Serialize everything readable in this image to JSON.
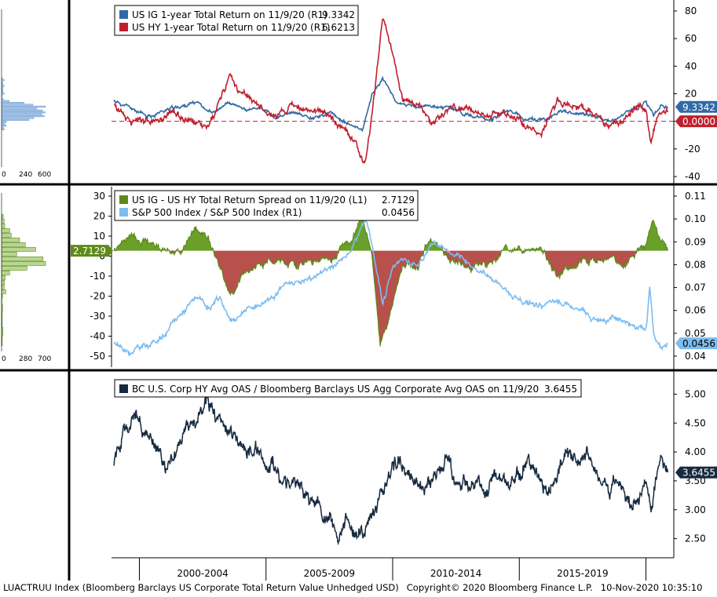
{
  "footer": {
    "index": "LUACTRUU Index (Bloomberg Barclays US Corporate Total Return Value Unhedged USD)",
    "copyright": "Copyright© 2020 Bloomberg Finance L.P.",
    "date": "10-Nov-2020 10:35:10"
  },
  "chart_data": [
    {
      "type": "line",
      "panel": "top",
      "legend_position": "top-left",
      "series": [
        {
          "name": "US IG 1-year Total Return on 11/9/20 (R1)",
          "value_label": "9.3342",
          "last": 9.3342,
          "color": "#2e6aa6",
          "anchors": [
            [
              1999.0,
              15
            ],
            [
              1999.6,
              10
            ],
            [
              2000.3,
              3
            ],
            [
              2001.0,
              8
            ],
            [
              2001.5,
              10
            ],
            [
              2002.3,
              14
            ],
            [
              2002.9,
              6
            ],
            [
              2003.5,
              13
            ],
            [
              2004.2,
              8
            ],
            [
              2004.8,
              10
            ],
            [
              2005.4,
              2
            ],
            [
              2006.0,
              6
            ],
            [
              2006.8,
              3
            ],
            [
              2007.6,
              6
            ],
            [
              2008.3,
              -3
            ],
            [
              2008.8,
              -6
            ],
            [
              2009.2,
              20
            ],
            [
              2009.6,
              31
            ],
            [
              2010.2,
              13
            ],
            [
              2010.9,
              10
            ],
            [
              2011.6,
              11
            ],
            [
              2012.4,
              9
            ],
            [
              2013.2,
              3
            ],
            [
              2013.8,
              1
            ],
            [
              2014.5,
              8
            ],
            [
              2015.2,
              2
            ],
            [
              2016.0,
              1
            ],
            [
              2016.6,
              7
            ],
            [
              2017.3,
              5
            ],
            [
              2018.0,
              4
            ],
            [
              2018.6,
              -1
            ],
            [
              2019.3,
              6
            ],
            [
              2020.0,
              14
            ],
            [
              2020.3,
              3
            ],
            [
              2020.6,
              12
            ],
            [
              2020.86,
              9.3342
            ]
          ]
        },
        {
          "name": "US HY 1-year Total Return on 11/9/20 (R1)",
          "value_label": "6.6213",
          "last": 6.6213,
          "color": "#c0202e",
          "anchors": [
            [
              1999.0,
              12
            ],
            [
              1999.6,
              2
            ],
            [
              2000.3,
              -2
            ],
            [
              2001.0,
              3
            ],
            [
              2001.5,
              6
            ],
            [
              2002.3,
              -3
            ],
            [
              2002.7,
              -5
            ],
            [
              2003.2,
              15
            ],
            [
              2003.6,
              35
            ],
            [
              2004.0,
              20
            ],
            [
              2004.6,
              12
            ],
            [
              2005.2,
              4
            ],
            [
              2006.0,
              10
            ],
            [
              2006.8,
              8
            ],
            [
              2007.5,
              5
            ],
            [
              2008.1,
              -5
            ],
            [
              2008.6,
              -20
            ],
            [
              2008.9,
              -32
            ],
            [
              2009.3,
              20
            ],
            [
              2009.6,
              75
            ],
            [
              2009.9,
              58
            ],
            [
              2010.4,
              15
            ],
            [
              2011.0,
              14
            ],
            [
              2011.5,
              -1
            ],
            [
              2012.4,
              12
            ],
            [
              2013.0,
              7
            ],
            [
              2013.8,
              5
            ],
            [
              2014.6,
              3
            ],
            [
              2015.3,
              -2
            ],
            [
              2015.9,
              -8
            ],
            [
              2016.5,
              16
            ],
            [
              2017.1,
              12
            ],
            [
              2017.8,
              7
            ],
            [
              2018.4,
              -2
            ],
            [
              2019.0,
              -1
            ],
            [
              2019.6,
              10
            ],
            [
              2020.0,
              8
            ],
            [
              2020.2,
              -14
            ],
            [
              2020.5,
              4
            ],
            [
              2020.86,
              6.6213
            ]
          ]
        }
      ],
      "extra_label": "0.0000",
      "ylim": [
        -40,
        80
      ],
      "yticks": [
        -40,
        -20,
        0,
        20,
        40,
        60,
        80
      ],
      "zero_line": true,
      "histogram_ticks": [
        "0",
        "240",
        "600"
      ]
    },
    {
      "type": "area",
      "panel": "middle",
      "legend_position": "top-left",
      "series": [
        {
          "name": "US IG - US HY Total Return Spread on 11/9/20 (L1)",
          "value_label": "2.7129",
          "last": 2.7129,
          "color": "#5e8a1a",
          "anchors": [
            [
              1999.0,
              3
            ],
            [
              1999.6,
              10
            ],
            [
              2000.3,
              7
            ],
            [
              2001.0,
              3
            ],
            [
              2001.6,
              2
            ],
            [
              2002.2,
              13
            ],
            [
              2002.7,
              9
            ],
            [
              2003.2,
              -5
            ],
            [
              2003.6,
              -20
            ],
            [
              2004.0,
              -10
            ],
            [
              2004.6,
              -3
            ],
            [
              2005.2,
              -2
            ],
            [
              2006.0,
              -4
            ],
            [
              2006.8,
              -3
            ],
            [
              2007.6,
              0
            ],
            [
              2008.3,
              7
            ],
            [
              2008.8,
              20
            ],
            [
              2009.2,
              0
            ],
            [
              2009.5,
              -45
            ],
            [
              2009.9,
              -30
            ],
            [
              2010.4,
              -5
            ],
            [
              2011.0,
              -4
            ],
            [
              2011.5,
              10
            ],
            [
              2012.3,
              -2
            ],
            [
              2013.1,
              -5
            ],
            [
              2013.8,
              -3
            ],
            [
              2014.5,
              3
            ],
            [
              2015.2,
              4
            ],
            [
              2015.8,
              6
            ],
            [
              2016.3,
              -6
            ],
            [
              2016.6,
              -10
            ],
            [
              2017.2,
              -4
            ],
            [
              2017.9,
              -1
            ],
            [
              2018.5,
              0
            ],
            [
              2019.1,
              -7
            ],
            [
              2019.6,
              2
            ],
            [
              2020.0,
              5
            ],
            [
              2020.25,
              18
            ],
            [
              2020.5,
              10
            ],
            [
              2020.86,
              2.7129
            ]
          ]
        },
        {
          "name": "S&P 500 Index / S&P 500 Index (R1)",
          "value_label": "0.0456",
          "last": 0.0456,
          "color": "#7cbcf0",
          "anchors": [
            [
              1999.0,
              0.046
            ],
            [
              1999.6,
              0.042
            ],
            [
              2000.3,
              0.045
            ],
            [
              2001.0,
              0.049
            ],
            [
              2001.6,
              0.058
            ],
            [
              2002.3,
              0.066
            ],
            [
              2002.8,
              0.061
            ],
            [
              2003.2,
              0.065
            ],
            [
              2003.6,
              0.055
            ],
            [
              2004.2,
              0.06
            ],
            [
              2004.8,
              0.063
            ],
            [
              2005.4,
              0.068
            ],
            [
              2006.0,
              0.072
            ],
            [
              2006.8,
              0.074
            ],
            [
              2007.4,
              0.078
            ],
            [
              2008.0,
              0.082
            ],
            [
              2008.6,
              0.092
            ],
            [
              2008.9,
              0.101
            ],
            [
              2009.2,
              0.088
            ],
            [
              2009.6,
              0.064
            ],
            [
              2010.0,
              0.078
            ],
            [
              2010.5,
              0.083
            ],
            [
              2011.0,
              0.08
            ],
            [
              2011.6,
              0.09
            ],
            [
              2012.3,
              0.085
            ],
            [
              2013.0,
              0.08
            ],
            [
              2013.8,
              0.075
            ],
            [
              2014.6,
              0.068
            ],
            [
              2015.3,
              0.063
            ],
            [
              2016.0,
              0.062
            ],
            [
              2016.6,
              0.064
            ],
            [
              2017.3,
              0.06
            ],
            [
              2018.0,
              0.056
            ],
            [
              2018.7,
              0.058
            ],
            [
              2019.3,
              0.054
            ],
            [
              2020.0,
              0.052
            ],
            [
              2020.15,
              0.07
            ],
            [
              2020.3,
              0.05
            ],
            [
              2020.6,
              0.044
            ],
            [
              2020.86,
              0.0456
            ]
          ]
        }
      ],
      "ylim_left": [
        -50,
        30
      ],
      "yticks_left": [
        -50,
        -40,
        -30,
        -20,
        -10,
        0,
        10,
        20,
        30
      ],
      "ylim_right": [
        0.04,
        0.11
      ],
      "yticks_right": [
        0.04,
        0.05,
        0.06,
        0.07,
        0.08,
        0.09,
        0.1,
        0.11
      ],
      "positive_fill": "#6aa02a",
      "negative_fill": "#b8504c",
      "histogram_ticks": [
        "0",
        "280",
        "700"
      ]
    },
    {
      "type": "line",
      "panel": "bottom",
      "legend_position": "top-left",
      "series": [
        {
          "name": "BC U.S. Corp HY Avg OAS / Bloomberg Barclays US Agg Corporate Avg OAS on 11/9/20",
          "value_label": "3.6455",
          "last": 3.6455,
          "color": "#172a40",
          "anchors": [
            [
              1999.0,
              3.8
            ],
            [
              1999.4,
              4.4
            ],
            [
              1999.9,
              4.6
            ],
            [
              2000.3,
              4.3
            ],
            [
              2000.7,
              4.1
            ],
            [
              2001.0,
              3.7
            ],
            [
              2001.4,
              4.0
            ],
            [
              2001.8,
              4.3
            ],
            [
              2002.3,
              4.5
            ],
            [
              2002.7,
              4.9
            ],
            [
              2003.0,
              4.6
            ],
            [
              2003.4,
              4.4
            ],
            [
              2003.8,
              4.3
            ],
            [
              2004.2,
              4.0
            ],
            [
              2004.6,
              4.1
            ],
            [
              2005.0,
              3.9
            ],
            [
              2005.5,
              3.6
            ],
            [
              2006.0,
              3.4
            ],
            [
              2006.6,
              3.2
            ],
            [
              2007.0,
              3.2
            ],
            [
              2007.4,
              2.9
            ],
            [
              2007.8,
              2.6
            ],
            [
              2008.2,
              2.8
            ],
            [
              2008.6,
              2.5
            ],
            [
              2008.9,
              2.6
            ],
            [
              2009.3,
              3.0
            ],
            [
              2009.7,
              3.5
            ],
            [
              2010.1,
              3.8
            ],
            [
              2010.5,
              3.7
            ],
            [
              2010.9,
              3.5
            ],
            [
              2011.3,
              3.4
            ],
            [
              2011.7,
              3.6
            ],
            [
              2012.1,
              3.9
            ],
            [
              2012.5,
              3.5
            ],
            [
              2012.9,
              3.4
            ],
            [
              2013.3,
              3.6
            ],
            [
              2013.7,
              3.3
            ],
            [
              2014.1,
              3.5
            ],
            [
              2014.5,
              3.4
            ],
            [
              2014.9,
              3.6
            ],
            [
              2015.3,
              3.8
            ],
            [
              2015.7,
              3.6
            ],
            [
              2016.1,
              3.2
            ],
            [
              2016.5,
              3.6
            ],
            [
              2016.9,
              4.0
            ],
            [
              2017.3,
              3.8
            ],
            [
              2017.7,
              4.0
            ],
            [
              2018.1,
              3.6
            ],
            [
              2018.5,
              3.3
            ],
            [
              2018.9,
              3.5
            ],
            [
              2019.3,
              3.2
            ],
            [
              2019.7,
              3.1
            ],
            [
              2020.0,
              3.5
            ],
            [
              2020.2,
              3.0
            ],
            [
              2020.4,
              3.6
            ],
            [
              2020.6,
              3.9
            ],
            [
              2020.86,
              3.6455
            ]
          ]
        }
      ],
      "ylim": [
        2.25,
        5.25
      ],
      "yticks": [
        2.5,
        3.0,
        3.5,
        4.0,
        4.5,
        5.0
      ],
      "ytick_labels": [
        "2.50",
        "3.00",
        "3.50",
        "4.00",
        "4.50",
        "5.00"
      ]
    }
  ],
  "x_axis": {
    "categories": [
      "2000-2004",
      "2005-2009",
      "2010-2014",
      "2015-2019"
    ],
    "boundaries": [
      2000,
      2005,
      2010,
      2015,
      2020
    ],
    "xlim": [
      1998.9,
      2021.1
    ]
  }
}
